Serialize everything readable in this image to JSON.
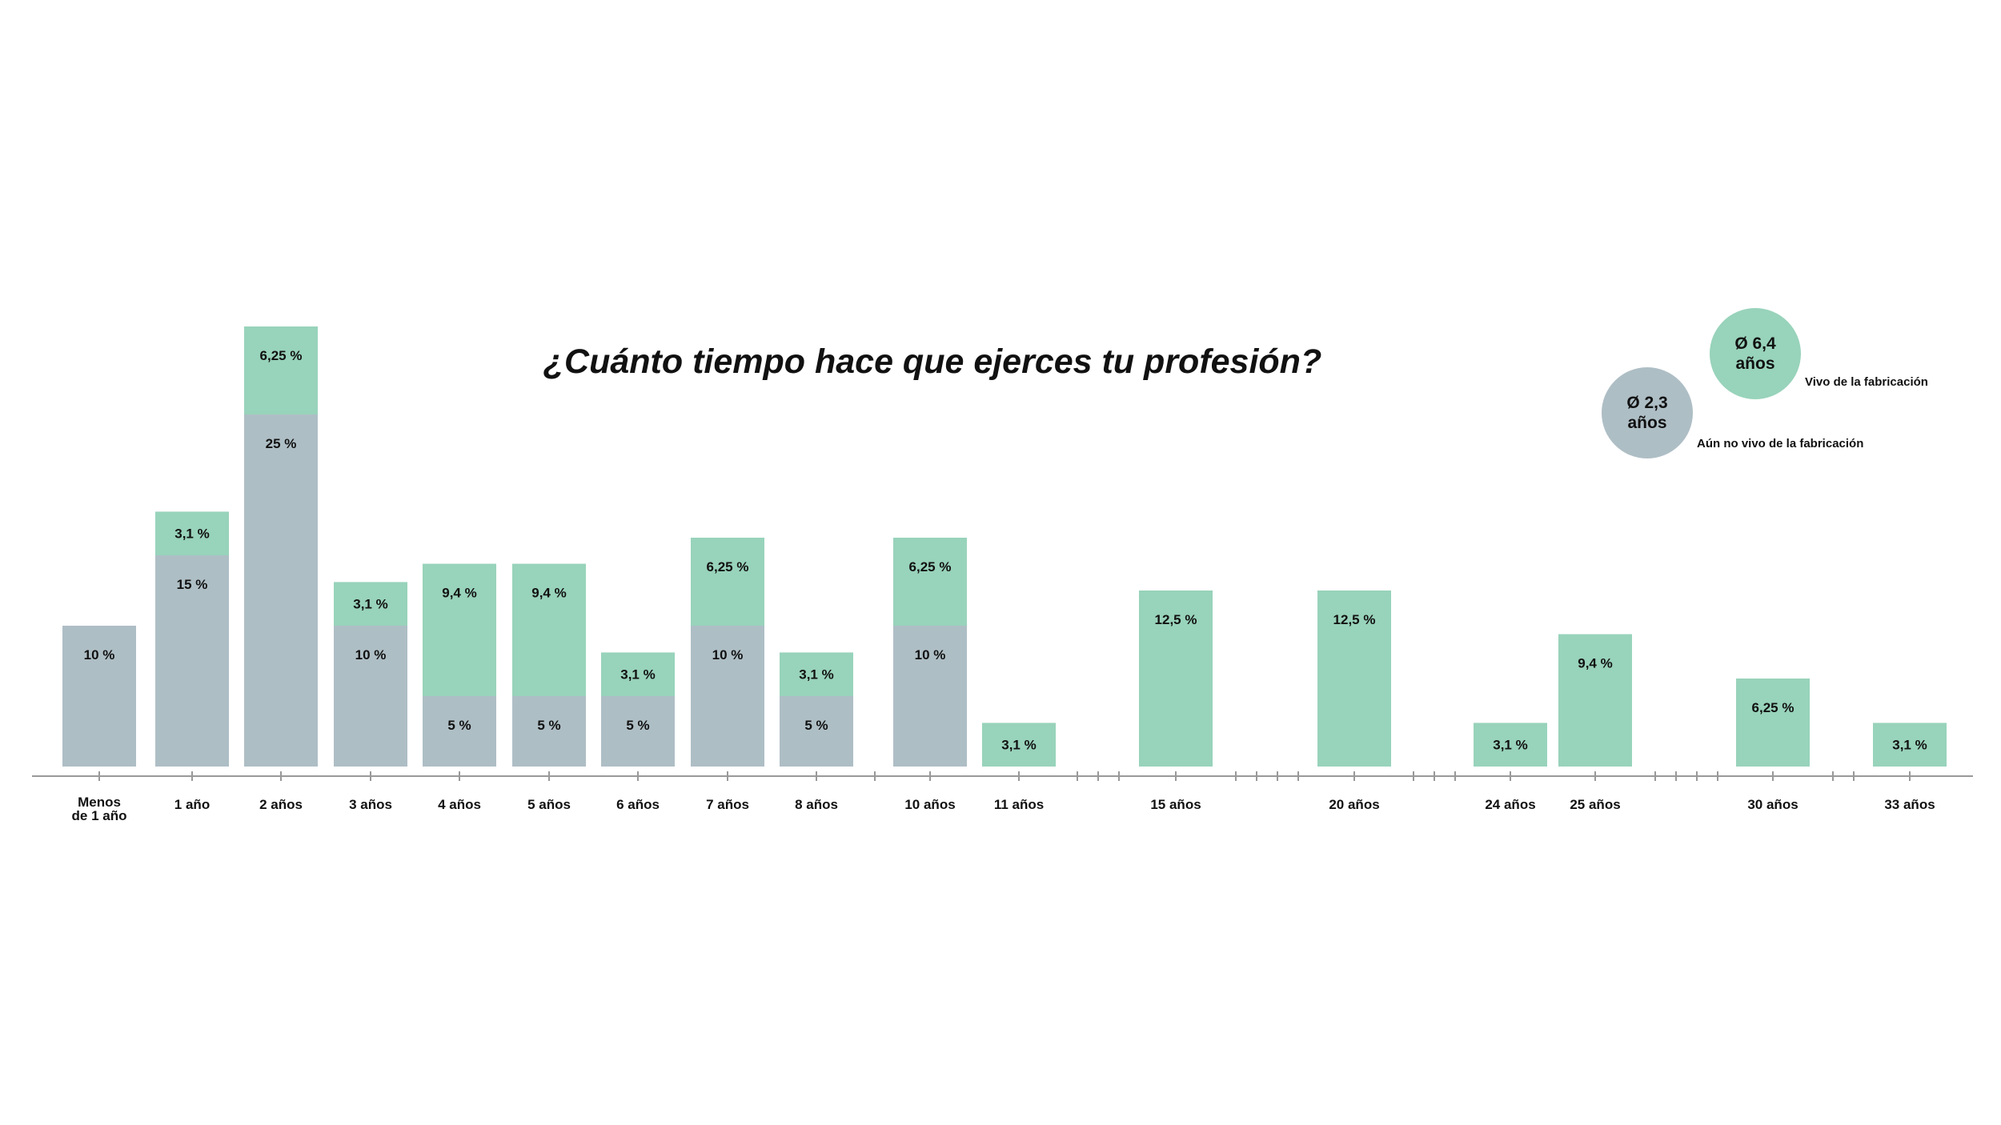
{
  "chart_data": {
    "type": "bar",
    "stacked": true,
    "title": "¿Cuánto tiempo hace que ejerces tu profesión?",
    "categories": [
      {
        "key": "lt1",
        "label": [
          "Menos",
          "de 1 año"
        ],
        "slot": 0
      },
      {
        "key": "y1",
        "label": [
          "1 año"
        ],
        "slot": 1
      },
      {
        "key": "y2",
        "label": [
          "2 años"
        ],
        "slot": 2
      },
      {
        "key": "y3",
        "label": [
          "3 años"
        ],
        "slot": 3
      },
      {
        "key": "y4",
        "label": [
          "4 años"
        ],
        "slot": 4
      },
      {
        "key": "y5",
        "label": [
          "5 años"
        ],
        "slot": 5
      },
      {
        "key": "y6",
        "label": [
          "6 años"
        ],
        "slot": 6
      },
      {
        "key": "y7",
        "label": [
          "7 años"
        ],
        "slot": 7
      },
      {
        "key": "y8",
        "label": [
          "8 años"
        ],
        "slot": 8
      },
      {
        "key": "y10",
        "label": [
          "10 años"
        ],
        "slot": 10
      },
      {
        "key": "y11",
        "label": [
          "11 años"
        ],
        "slot": 11
      },
      {
        "key": "y15",
        "label": [
          "15 años"
        ],
        "slot": 15
      },
      {
        "key": "y20",
        "label": [
          "20 años"
        ],
        "slot": 20
      },
      {
        "key": "y24",
        "label": [
          "24 años"
        ],
        "slot": 24
      },
      {
        "key": "y25",
        "label": [
          "25 años"
        ],
        "slot": 25
      },
      {
        "key": "y30",
        "label": [
          "30 años"
        ],
        "slot": 30
      },
      {
        "key": "y33",
        "label": [
          "33 años"
        ],
        "slot": 33
      }
    ],
    "minor_ticks": [
      9,
      12,
      13,
      14,
      16,
      17,
      18,
      19,
      21,
      22,
      23,
      26,
      27,
      28,
      29,
      31,
      32
    ],
    "series": [
      {
        "name": "Aún no vivo de la fabricación",
        "color": "#aebec5",
        "values": [
          10,
          15,
          25,
          10,
          5,
          5,
          5,
          10,
          5,
          10,
          null,
          null,
          null,
          null,
          null,
          null,
          null
        ],
        "labels": [
          "10 %",
          "15 %",
          "25 %",
          "10 %",
          "5 %",
          "5 %",
          "5 %",
          "10 %",
          "5 %",
          "10 %",
          "",
          "",
          "",
          "",
          "",
          "",
          ""
        ]
      },
      {
        "name": "Vivo de la fabricación",
        "color": "#98d3bb",
        "values": [
          null,
          3.1,
          6.25,
          3.1,
          9.4,
          9.4,
          3.1,
          6.25,
          3.1,
          6.25,
          3.1,
          12.5,
          12.5,
          3.1,
          9.4,
          6.25,
          3.1
        ],
        "labels": [
          "",
          "3,1 %",
          "6,25 %",
          "3,1 %",
          "9,4 %",
          "9,4 %",
          "3,1 %",
          "6,25 %",
          "3,1 %",
          "6,25 %",
          "3,1 %",
          "12,5 %",
          "12,5 %",
          "3,1 %",
          "9,4 %",
          "6,25 %",
          "3,1 %"
        ]
      }
    ],
    "ylim": [
      0,
      31.25
    ],
    "grid": false,
    "legend_placement": "top-right",
    "axis_color": "#999999"
  },
  "legend": {
    "vivo": {
      "average": "Ø 6,4",
      "unit": "años",
      "label": "Vivo de la fabricación",
      "color": "#98d3bb"
    },
    "aun_no": {
      "average": "Ø 2,3",
      "unit": "años",
      "label": "Aún no vivo de la fabricación",
      "color": "#aebec5"
    }
  }
}
